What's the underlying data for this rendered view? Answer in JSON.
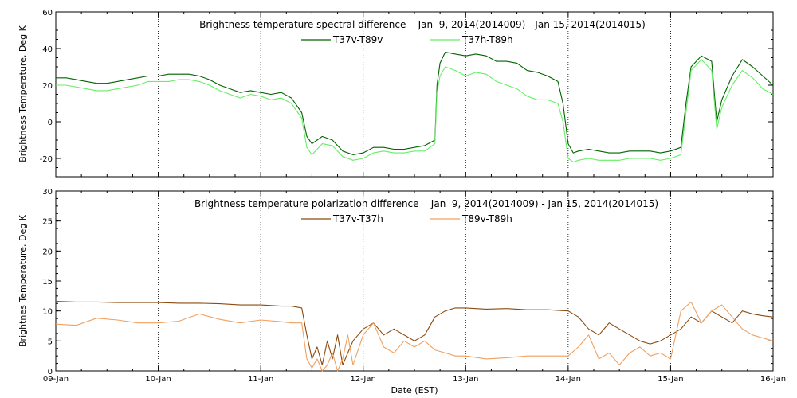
{
  "chart_data": [
    {
      "type": "line",
      "title": "Brightness temperature spectral difference    Jan  9, 2014(2014009) - Jan 15, 2014(2014015)",
      "ylabel": "Brightness Temperature, Deg K",
      "xlabel": "",
      "ylim": [
        -30,
        60
      ],
      "yticks": [
        -20,
        0,
        20,
        40,
        60
      ],
      "xlim": [
        0,
        7
      ],
      "grid": "vertical dotted at day boundaries",
      "legend_placement": "top-center",
      "series": [
        {
          "name": "T37v-T89v",
          "color": "#006400",
          "x": [
            0,
            0.1,
            0.2,
            0.3,
            0.4,
            0.5,
            0.6,
            0.7,
            0.8,
            0.9,
            1.0,
            1.1,
            1.2,
            1.3,
            1.4,
            1.5,
            1.6,
            1.7,
            1.8,
            1.9,
            2.0,
            2.1,
            2.2,
            2.3,
            2.4,
            2.45,
            2.5,
            2.55,
            2.6,
            2.7,
            2.8,
            2.9,
            3.0,
            3.1,
            3.2,
            3.3,
            3.4,
            3.5,
            3.6,
            3.7,
            3.72,
            3.75,
            3.8,
            3.9,
            4.0,
            4.1,
            4.2,
            4.3,
            4.4,
            4.5,
            4.6,
            4.7,
            4.8,
            4.9,
            4.95,
            5.0,
            5.05,
            5.1,
            5.2,
            5.3,
            5.4,
            5.5,
            5.6,
            5.7,
            5.8,
            5.9,
            6.0,
            6.1,
            6.15,
            6.2,
            6.3,
            6.4,
            6.45,
            6.5,
            6.6,
            6.7,
            6.8,
            6.9,
            7.0
          ],
          "y": [
            24,
            24,
            23,
            22,
            21,
            21,
            22,
            23,
            24,
            25,
            25,
            26,
            26,
            26,
            25,
            23,
            20,
            18,
            16,
            17,
            16,
            15,
            16,
            13,
            5,
            -8,
            -12,
            -10,
            -8,
            -10,
            -16,
            -18,
            -17,
            -14,
            -14,
            -15,
            -15,
            -14,
            -13,
            -10,
            20,
            32,
            38,
            37,
            36,
            37,
            36,
            33,
            33,
            32,
            28,
            27,
            25,
            22,
            10,
            -12,
            -17,
            -16,
            -15,
            -16,
            -17,
            -17,
            -16,
            -16,
            -16,
            -17,
            -16,
            -14,
            10,
            30,
            36,
            33,
            0,
            12,
            25,
            34,
            30,
            25,
            20
          ]
        },
        {
          "name": "T37h-T89h",
          "color": "#66ee66",
          "x": [
            0,
            0.1,
            0.2,
            0.3,
            0.4,
            0.5,
            0.6,
            0.7,
            0.8,
            0.9,
            1.0,
            1.1,
            1.2,
            1.3,
            1.4,
            1.5,
            1.6,
            1.7,
            1.8,
            1.9,
            2.0,
            2.1,
            2.2,
            2.3,
            2.4,
            2.45,
            2.5,
            2.55,
            2.6,
            2.7,
            2.8,
            2.9,
            3.0,
            3.1,
            3.2,
            3.3,
            3.4,
            3.5,
            3.6,
            3.7,
            3.72,
            3.75,
            3.8,
            3.9,
            4.0,
            4.1,
            4.2,
            4.3,
            4.4,
            4.5,
            4.6,
            4.7,
            4.8,
            4.9,
            4.95,
            5.0,
            5.05,
            5.1,
            5.2,
            5.3,
            5.4,
            5.5,
            5.6,
            5.7,
            5.8,
            5.9,
            6.0,
            6.1,
            6.15,
            6.2,
            6.3,
            6.4,
            6.45,
            6.5,
            6.6,
            6.7,
            6.8,
            6.9,
            7.0
          ],
          "y": [
            20,
            20,
            19,
            18,
            17,
            17,
            18,
            19,
            20,
            22,
            22,
            22,
            23,
            23,
            22,
            20,
            17,
            15,
            13,
            15,
            14,
            12,
            13,
            10,
            2,
            -14,
            -18,
            -15,
            -12,
            -13,
            -19,
            -21,
            -20,
            -17,
            -16,
            -17,
            -17,
            -16,
            -16,
            -12,
            16,
            25,
            30,
            28,
            25,
            27,
            26,
            22,
            20,
            18,
            14,
            12,
            12,
            10,
            0,
            -20,
            -22,
            -21,
            -20,
            -21,
            -21,
            -21,
            -20,
            -20,
            -20,
            -21,
            -20,
            -18,
            5,
            28,
            34,
            28,
            -4,
            8,
            20,
            28,
            24,
            18,
            15
          ]
        }
      ]
    },
    {
      "type": "line",
      "title": "Brightness temperature polarization difference    Jan  9, 2014(2014009) - Jan 15, 2014(2014015)",
      "ylabel": "Brightnes Temperature, Deg K",
      "xlabel": "Date (EST)",
      "ylim": [
        0,
        30
      ],
      "yticks": [
        0,
        5,
        10,
        15,
        20,
        25,
        30
      ],
      "xlim": [
        0,
        7
      ],
      "xticks": [
        "09-Jan",
        "10-Jan",
        "11-Jan",
        "12-Jan",
        "13-Jan",
        "14-Jan",
        "15-Jan",
        "16-Jan"
      ],
      "grid": "vertical dotted at day boundaries",
      "legend_placement": "top-center",
      "series": [
        {
          "name": "T37v-T37h",
          "color": "#8b4a0e",
          "x": [
            0,
            0.2,
            0.4,
            0.6,
            0.8,
            1.0,
            1.2,
            1.4,
            1.6,
            1.8,
            2.0,
            2.2,
            2.3,
            2.4,
            2.45,
            2.5,
            2.55,
            2.6,
            2.65,
            2.7,
            2.75,
            2.8,
            2.85,
            2.9,
            3.0,
            3.1,
            3.2,
            3.3,
            3.4,
            3.5,
            3.6,
            3.7,
            3.8,
            3.9,
            4.0,
            4.2,
            4.4,
            4.6,
            4.8,
            5.0,
            5.1,
            5.2,
            5.3,
            5.4,
            5.5,
            5.6,
            5.7,
            5.8,
            5.9,
            6.0,
            6.1,
            6.2,
            6.3,
            6.4,
            6.5,
            6.6,
            6.7,
            6.8,
            6.9,
            7.0
          ],
          "y": [
            11.6,
            11.5,
            11.5,
            11.4,
            11.4,
            11.4,
            11.3,
            11.3,
            11.2,
            11.0,
            11.0,
            10.8,
            10.8,
            10.5,
            6,
            2,
            4,
            1,
            5,
            2,
            6,
            1,
            3,
            5,
            7,
            8,
            6,
            7,
            6,
            5,
            6,
            9,
            10,
            10.5,
            10.5,
            10.3,
            10.4,
            10.2,
            10.2,
            10.0,
            9,
            7,
            6,
            8,
            7,
            6,
            5,
            4.5,
            5,
            6,
            7,
            9,
            8,
            10,
            9,
            8,
            10,
            9.5,
            9.2,
            9.0
          ]
        },
        {
          "name": "T89v-T89h",
          "color": "#f0a060",
          "x": [
            0,
            0.2,
            0.4,
            0.6,
            0.8,
            1.0,
            1.2,
            1.4,
            1.6,
            1.8,
            2.0,
            2.2,
            2.3,
            2.4,
            2.45,
            2.5,
            2.55,
            2.6,
            2.65,
            2.7,
            2.75,
            2.8,
            2.85,
            2.9,
            3.0,
            3.1,
            3.2,
            3.3,
            3.4,
            3.5,
            3.6,
            3.7,
            3.8,
            3.9,
            4.0,
            4.2,
            4.4,
            4.6,
            4.8,
            5.0,
            5.1,
            5.2,
            5.3,
            5.4,
            5.5,
            5.6,
            5.7,
            5.8,
            5.9,
            6.0,
            6.1,
            6.2,
            6.3,
            6.4,
            6.5,
            6.6,
            6.7,
            6.8,
            6.9,
            7.0
          ],
          "y": [
            7.8,
            7.6,
            8.8,
            8.5,
            8.0,
            8.0,
            8.3,
            9.5,
            8.6,
            8.0,
            8.5,
            8.2,
            8.0,
            8.0,
            2,
            0.5,
            2,
            0,
            1,
            3,
            0,
            2,
            6,
            1,
            6,
            8,
            4,
            3,
            5,
            4,
            5,
            3.5,
            3,
            2.5,
            2.5,
            2.0,
            2.2,
            2.5,
            2.5,
            2.5,
            4,
            6,
            2,
            3,
            1,
            3,
            4,
            2.5,
            3,
            2,
            10,
            11.5,
            8,
            10,
            11,
            9,
            7,
            6,
            5.5,
            5
          ]
        }
      ]
    }
  ]
}
